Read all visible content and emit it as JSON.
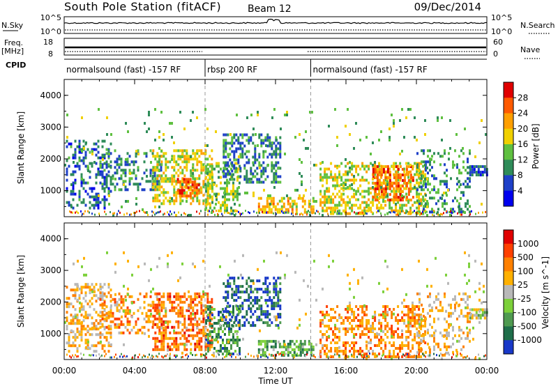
{
  "header": {
    "title": "South Pole Station (fitACF)",
    "beam": "Beam 12",
    "date": "09/Dec/2014"
  },
  "params": {
    "nsky_label": "N.Sky",
    "nsky_ticks": [
      "10^5",
      "10^0"
    ],
    "nsearch_label": "N.Search",
    "nsearch_ticks": [
      "10^5",
      "10^0"
    ],
    "freq_label": "Freq.",
    "freq_unit": "[MHz]",
    "freq_ticks": [
      "18",
      "8"
    ],
    "nave_label": "Nave",
    "nave_ticks": [
      "60",
      "0"
    ],
    "cpid_label": "CPID",
    "cpid_segments": [
      {
        "label": "normalsound (fast) -157 RF",
        "start_hour": 0,
        "end_hour": 8
      },
      {
        "label": "rbsp 200 RF",
        "start_hour": 8,
        "end_hour": 14
      },
      {
        "label": "normalsound (fast) -157 RF",
        "start_hour": 14,
        "end_hour": 24
      }
    ]
  },
  "chart_data": [
    {
      "type": "heatmap",
      "ylabel": "Slant Range [km]",
      "yticks": [
        "4000",
        "3000",
        "2000",
        "1000"
      ],
      "ylim": [
        180,
        4500
      ],
      "xlim": [
        0,
        24
      ],
      "colorbar_label": "Power [dB]",
      "colorbar_ticks": [
        "28",
        "24",
        "20",
        "16",
        "12",
        "8",
        "4"
      ],
      "colorbar_colors": [
        "#0000ee",
        "#1e40c8",
        "#2f8c59",
        "#5fc040",
        "#f0d000",
        "#ff9f00",
        "#ff5a00",
        "#e00000"
      ],
      "echo_regions": [
        {
          "t0": 0.1,
          "t1": 2.6,
          "r0": 450,
          "r1": 2600,
          "level": 0.2,
          "density": 0.35
        },
        {
          "t0": 2.0,
          "t1": 5.5,
          "r0": 1000,
          "r1": 2300,
          "level": 0.25,
          "density": 0.3
        },
        {
          "t0": 5.0,
          "t1": 8.4,
          "r0": 600,
          "r1": 2300,
          "level": 0.55,
          "density": 0.5
        },
        {
          "t0": 6.4,
          "t1": 7.8,
          "r0": 800,
          "r1": 1400,
          "level": 0.85,
          "density": 0.65
        },
        {
          "t0": 8.0,
          "t1": 10.0,
          "r0": 400,
          "r1": 1900,
          "level": 0.45,
          "density": 0.5
        },
        {
          "t0": 9.0,
          "t1": 12.3,
          "r0": 1300,
          "r1": 2800,
          "level": 0.25,
          "density": 0.45
        },
        {
          "t0": 11.0,
          "t1": 14.2,
          "r0": 300,
          "r1": 800,
          "level": 0.65,
          "density": 0.55
        },
        {
          "t0": 14.5,
          "t1": 20.5,
          "r0": 300,
          "r1": 1900,
          "level": 0.55,
          "density": 0.45
        },
        {
          "t0": 17.5,
          "t1": 19.8,
          "r0": 700,
          "r1": 1800,
          "level": 0.8,
          "density": 0.55
        },
        {
          "t0": 20.0,
          "t1": 23.0,
          "r0": 300,
          "r1": 2300,
          "level": 0.3,
          "density": 0.25
        },
        {
          "t0": 23.0,
          "t1": 24.0,
          "r0": 1500,
          "r1": 1800,
          "level": 0.2,
          "density": 0.8
        },
        {
          "t0": 0.0,
          "t1": 24.0,
          "r0": 180,
          "r1": 3600,
          "level": 0.4,
          "density": 0.03
        }
      ]
    },
    {
      "type": "heatmap",
      "ylabel": "Slant Range [km]",
      "yticks": [
        "4000",
        "3000",
        "2000",
        "1000"
      ],
      "ylim": [
        180,
        4500
      ],
      "xlim": [
        0,
        24
      ],
      "xlabel": "Time UT",
      "xticks": [
        "00:00",
        "04:00",
        "08:00",
        "12:00",
        "16:00",
        "20:00",
        "00:00"
      ],
      "colorbar_label": "Velocity [m s^-1]",
      "colorbar_ticks": [
        "1000",
        "500",
        "100",
        "25",
        "-25",
        "-100",
        "-500",
        "-1000"
      ],
      "colorbar_colors": [
        "#1838c8",
        "#1f6e4a",
        "#4f9a50",
        "#7cd03a",
        "#b8b8b8",
        "#ffb000",
        "#ff8000",
        "#ff4000",
        "#e00000"
      ],
      "echo_regions": [
        {
          "t0": 0.1,
          "t1": 2.6,
          "r0": 450,
          "r1": 2600,
          "level": 0.62,
          "density": 0.35
        },
        {
          "t0": 2.0,
          "t1": 5.5,
          "r0": 1000,
          "r1": 2300,
          "level": 0.7,
          "density": 0.3
        },
        {
          "t0": 5.0,
          "t1": 8.4,
          "r0": 500,
          "r1": 2300,
          "level": 0.8,
          "density": 0.5
        },
        {
          "t0": 8.0,
          "t1": 10.0,
          "r0": 400,
          "r1": 1900,
          "level": 0.2,
          "density": 0.5
        },
        {
          "t0": 9.0,
          "t1": 12.3,
          "r0": 1300,
          "r1": 2800,
          "level": 0.08,
          "density": 0.45
        },
        {
          "t0": 11.0,
          "t1": 14.2,
          "r0": 300,
          "r1": 800,
          "level": 0.28,
          "density": 0.55
        },
        {
          "t0": 14.5,
          "t1": 20.5,
          "r0": 300,
          "r1": 1900,
          "level": 0.72,
          "density": 0.45
        },
        {
          "t0": 20.0,
          "t1": 23.0,
          "r0": 300,
          "r1": 2300,
          "level": 0.6,
          "density": 0.25
        },
        {
          "t0": 23.0,
          "t1": 24.0,
          "r0": 1500,
          "r1": 1800,
          "level": 0.45,
          "density": 0.8
        },
        {
          "t0": 0.0,
          "t1": 24.0,
          "r0": 180,
          "r1": 3600,
          "level": 0.5,
          "density": 0.03
        }
      ]
    }
  ]
}
